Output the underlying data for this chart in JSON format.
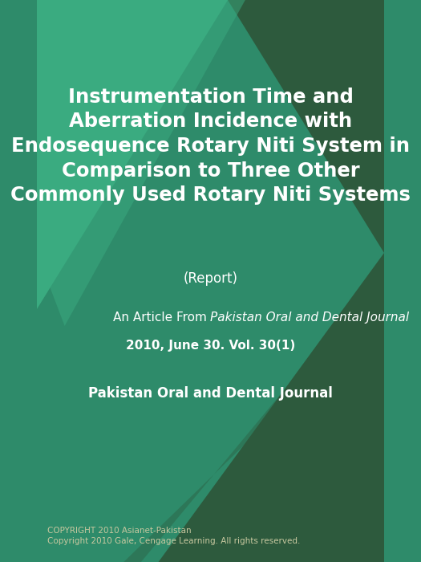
{
  "title_line1": "Instrumentation Time and",
  "title_line2": "Aberration Incidence with",
  "title_line3": "Endosequence Rotary Niti System in",
  "title_line4": "Comparison to Three Other",
  "title_line5": "Commonly Used Rotary Niti Systems",
  "subtitle": "(Report)",
  "article_line1_plain": "An Article From ",
  "article_line1_italic": "Pakistan Oral and Dental Journal",
  "article_line2": "2010, June 30. Vol. 30(1)",
  "publisher": "Pakistan Oral and Dental Journal",
  "copyright_line1": "COPYRIGHT 2010 Asianet-Pakistan",
  "copyright_line2": "Copyright 2010 Gale, Cengage Learning. All rights reserved.",
  "bg_color_main": "#2e8b6a",
  "bg_color_dark": "#2d5a3d",
  "triangle_teal_light": "#3aab80",
  "triangle_dark": "#2d5a3d",
  "title_color": "#ffffff",
  "subtitle_color": "#ffffff",
  "article_text_color": "#ffffff",
  "publisher_color": "#ffffff",
  "copyright_color": "#c8c8a0",
  "title_fontsize": 17.5,
  "subtitle_fontsize": 12,
  "article_fontsize": 11,
  "publisher_fontsize": 12,
  "copyright_fontsize": 7.5
}
